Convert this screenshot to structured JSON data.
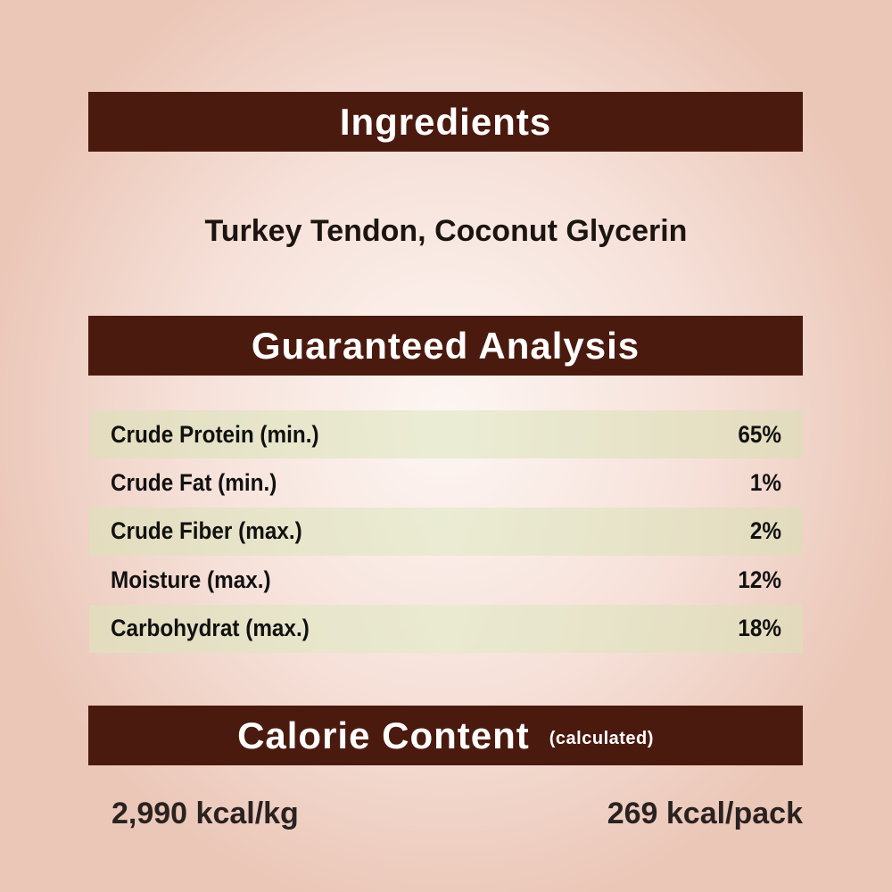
{
  "ingredients": {
    "heading": "Ingredients",
    "text": "Turkey Tendon, Coconut Glycerin"
  },
  "analysis": {
    "heading": "Guaranteed Analysis",
    "rows": [
      {
        "label": "Crude Protein (min.)",
        "value": "65%"
      },
      {
        "label": "Crude Fat (min.)",
        "value": "1%"
      },
      {
        "label": "Crude Fiber (max.)",
        "value": "2%"
      },
      {
        "label": "Moisture (max.)",
        "value": "12%"
      },
      {
        "label": "Carbohydrat (max.)",
        "value": "18%"
      }
    ]
  },
  "calorie": {
    "heading": "Calorie Content",
    "subheading": "(calculated)",
    "per_kg": "2,990 kcal/kg",
    "per_pack": "269 kcal/pack"
  },
  "colors": {
    "banner": "#4b1a0f",
    "row_tint": "#e2dfc0"
  }
}
